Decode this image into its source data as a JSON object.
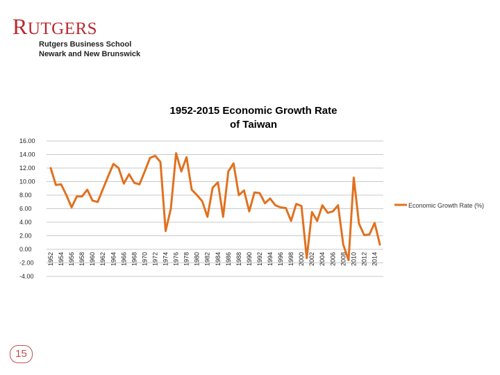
{
  "logo": {
    "wordmark_big_r": "R",
    "wordmark_rest": "UTGERS",
    "line1": "Rutgers Business School",
    "line2": "Newark and New Brunswick"
  },
  "slide_number": "15",
  "colors": {
    "brand": "#b8282e",
    "series": "#e0711f",
    "grid": "#c8c8c8",
    "page_number": "#c0504d"
  },
  "chart_data": {
    "type": "line",
    "title_line1": "1952-2015 Economic Growth Rate",
    "title_line2": "of  Taiwan",
    "ylim": [
      -4,
      16
    ],
    "yticks": [
      "16.00",
      "14.00",
      "12.00",
      "10.00",
      "8.00",
      "6.00",
      "4.00",
      "2.00",
      "0.00",
      "-2.00",
      "-4.00"
    ],
    "x": [
      1952,
      1953,
      1954,
      1955,
      1956,
      1957,
      1958,
      1959,
      1960,
      1961,
      1962,
      1963,
      1964,
      1965,
      1966,
      1967,
      1968,
      1969,
      1970,
      1971,
      1972,
      1973,
      1974,
      1975,
      1976,
      1977,
      1978,
      1979,
      1980,
      1981,
      1982,
      1983,
      1984,
      1985,
      1986,
      1987,
      1988,
      1989,
      1990,
      1991,
      1992,
      1993,
      1994,
      1995,
      1996,
      1997,
      1998,
      1999,
      2000,
      2001,
      2002,
      2003,
      2004,
      2005,
      2006,
      2007,
      2008,
      2009,
      2010,
      2011,
      2012,
      2013,
      2014,
      2015
    ],
    "xtick_labels": [
      "1952",
      "1954",
      "1956",
      "1958",
      "1960",
      "1962",
      "1964",
      "1966",
      "1968",
      "1970",
      "1972",
      "1974",
      "1976",
      "1978",
      "1980",
      "1982",
      "1984",
      "1986",
      "1988",
      "1990",
      "1992",
      "1994",
      "1996",
      "1998",
      "2000",
      "2002",
      "2004",
      "2006",
      "2008",
      "2010",
      "2012",
      "2014"
    ],
    "series": [
      {
        "name": "Economic Growth Rate (%)",
        "values": [
          12.0,
          9.5,
          9.6,
          8.0,
          6.2,
          7.8,
          7.8,
          8.8,
          7.2,
          7.0,
          8.9,
          10.8,
          12.6,
          12.0,
          9.7,
          11.1,
          9.8,
          9.6,
          11.5,
          13.5,
          13.8,
          12.9,
          2.7,
          6.0,
          14.2,
          11.5,
          13.6,
          8.8,
          8.0,
          7.1,
          4.8,
          9.1,
          9.9,
          4.8,
          11.5,
          12.7,
          8.0,
          8.7,
          5.6,
          8.4,
          8.3,
          6.8,
          7.5,
          6.5,
          6.2,
          6.1,
          4.2,
          6.7,
          6.4,
          -1.3,
          5.5,
          4.2,
          6.5,
          5.4,
          5.6,
          6.5,
          0.7,
          -1.6,
          10.6,
          3.8,
          2.1,
          2.2,
          3.9,
          0.7
        ]
      }
    ]
  }
}
